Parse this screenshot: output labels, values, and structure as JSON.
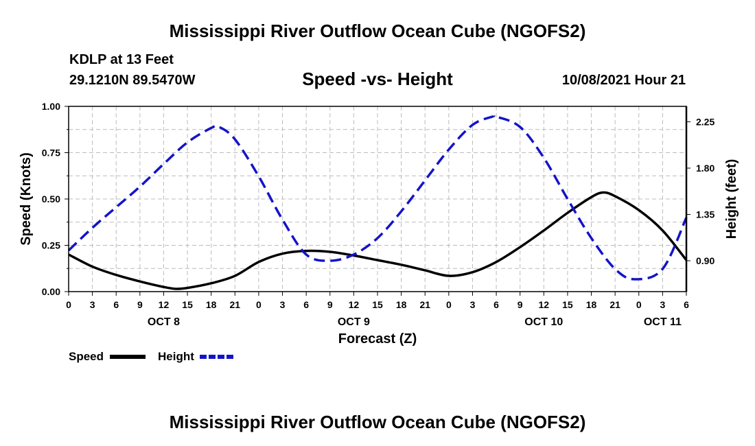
{
  "header": {
    "title": "Mississippi River Outflow Ocean Cube (NGOFS2)",
    "station": "KDLP at 13 Feet",
    "coordinates": "29.1210N  89.5470W",
    "subtitle": "Speed -vs- Height",
    "datetime": "10/08/2021 Hour 21"
  },
  "footer": {
    "title": "Mississippi River Outflow Ocean Cube (NGOFS2)"
  },
  "chart_data": {
    "type": "line",
    "title": "Speed -vs- Height",
    "xlabel": "Forecast (Z)",
    "ylabel": "Speed (Knots)",
    "y2label": "Height (feet)",
    "xlim": [
      0,
      78
    ],
    "ylim": [
      0,
      1.0
    ],
    "y2lim": [
      0.6,
      2.4
    ],
    "x_ticks": [
      {
        "x": 0,
        "label": "0"
      },
      {
        "x": 3,
        "label": "3"
      },
      {
        "x": 6,
        "label": "6"
      },
      {
        "x": 9,
        "label": "9"
      },
      {
        "x": 12,
        "label": "12"
      },
      {
        "x": 15,
        "label": "15"
      },
      {
        "x": 18,
        "label": "18"
      },
      {
        "x": 21,
        "label": "21"
      },
      {
        "x": 24,
        "label": "0"
      },
      {
        "x": 27,
        "label": "3"
      },
      {
        "x": 30,
        "label": "6"
      },
      {
        "x": 33,
        "label": "9"
      },
      {
        "x": 36,
        "label": "12"
      },
      {
        "x": 39,
        "label": "15"
      },
      {
        "x": 42,
        "label": "18"
      },
      {
        "x": 45,
        "label": "21"
      },
      {
        "x": 48,
        "label": "0"
      },
      {
        "x": 51,
        "label": "3"
      },
      {
        "x": 54,
        "label": "6"
      },
      {
        "x": 57,
        "label": "9"
      },
      {
        "x": 60,
        "label": "12"
      },
      {
        "x": 63,
        "label": "15"
      },
      {
        "x": 66,
        "label": "18"
      },
      {
        "x": 69,
        "label": "21"
      },
      {
        "x": 72,
        "label": "0"
      },
      {
        "x": 75,
        "label": "3"
      },
      {
        "x": 78,
        "label": "6"
      }
    ],
    "date_labels": [
      {
        "x": 12,
        "label": "OCT 8"
      },
      {
        "x": 36,
        "label": "OCT 9"
      },
      {
        "x": 60,
        "label": "OCT 10"
      },
      {
        "x": 75,
        "label": "OCT 11"
      }
    ],
    "y_ticks": [
      {
        "v": 0,
        "label": "0.00"
      },
      {
        "v": 0.25,
        "label": "0.25"
      },
      {
        "v": 0.5,
        "label": "0.50"
      },
      {
        "v": 0.75,
        "label": "0.75"
      },
      {
        "v": 1.0,
        "label": "1.00"
      }
    ],
    "y2_ticks": [
      {
        "v": 0.9,
        "label": "0.90"
      },
      {
        "v": 1.35,
        "label": "1.35"
      },
      {
        "v": 1.8,
        "label": "1.80"
      },
      {
        "v": 2.25,
        "label": "2.25"
      }
    ],
    "series": [
      {
        "name": "Speed",
        "axis": "left",
        "color": "#000000",
        "style": "solid",
        "x": [
          0,
          3,
          6,
          9,
          12,
          13.5,
          15,
          18,
          21,
          24,
          27,
          30,
          33,
          36,
          39,
          42,
          45,
          48,
          51,
          54,
          57,
          60,
          63,
          66,
          67.5,
          69,
          72,
          75,
          78
        ],
        "values": [
          0.2,
          0.135,
          0.09,
          0.055,
          0.025,
          0.015,
          0.02,
          0.045,
          0.085,
          0.16,
          0.205,
          0.22,
          0.215,
          0.195,
          0.17,
          0.145,
          0.115,
          0.085,
          0.105,
          0.16,
          0.24,
          0.33,
          0.425,
          0.51,
          0.535,
          0.515,
          0.44,
          0.33,
          0.17
        ]
      },
      {
        "name": "Height",
        "axis": "right",
        "color": "#1414c8",
        "style": "dashed",
        "x": [
          0,
          3,
          6,
          9,
          12,
          15,
          18,
          19,
          21,
          24,
          27,
          30,
          33,
          36,
          39,
          42,
          45,
          48,
          51,
          53.5,
          54,
          57,
          60,
          63,
          66,
          69,
          71.5,
          75,
          78
        ],
        "values": [
          1.0,
          1.22,
          1.42,
          1.62,
          1.84,
          2.05,
          2.19,
          2.2,
          2.08,
          1.72,
          1.3,
          0.96,
          0.9,
          0.96,
          1.12,
          1.38,
          1.68,
          1.98,
          2.22,
          2.3,
          2.3,
          2.2,
          1.9,
          1.5,
          1.12,
          0.82,
          0.72,
          0.82,
          1.32
        ]
      }
    ],
    "legend": [
      {
        "label": "Speed",
        "color": "#000000",
        "style": "solid"
      },
      {
        "label": "Height",
        "color": "#1414c8",
        "style": "dashed"
      }
    ],
    "legend_position": "bottom-left",
    "grid": true
  }
}
